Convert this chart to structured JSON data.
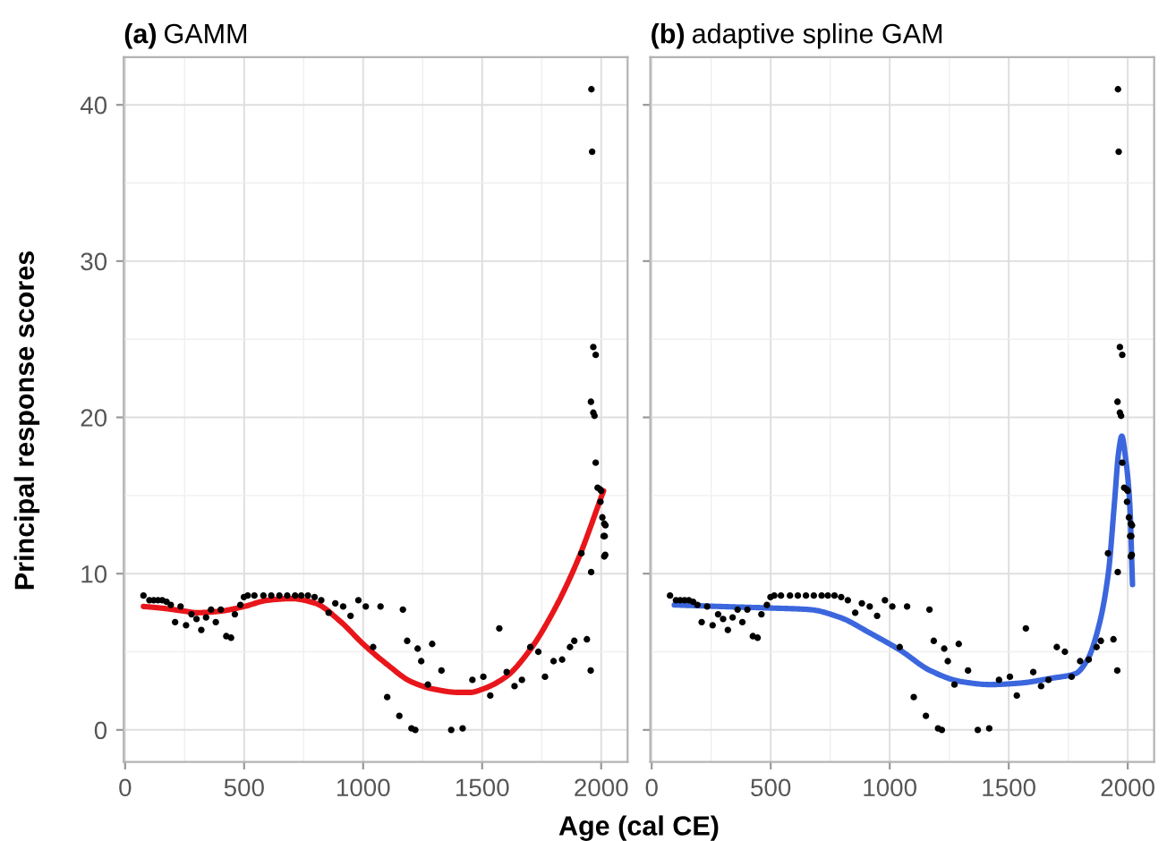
{
  "chart_data": [
    {
      "type": "scatter",
      "title": "(a) GAMM",
      "xlabel": "Age (cal CE)",
      "ylabel": "Principal response scores",
      "xlim": [
        -6,
        2111
      ],
      "ylim": [
        -2.05,
        43.05
      ],
      "xticks": [
        0,
        500,
        1000,
        1500,
        2000
      ],
      "yticks": [
        0,
        10,
        20,
        30,
        40
      ],
      "grid": true,
      "tick_labels": true,
      "series": [
        {
          "color": "#000000",
          "x": [
            77,
            102,
            120,
            138,
            156,
            174,
            192,
            210,
            233,
            256,
            279,
            300,
            320,
            340,
            361,
            381,
            402,
            425,
            445,
            461,
            484,
            499,
            515,
            543,
            581,
            614,
            648,
            681,
            714,
            740,
            768,
            796,
            824,
            855,
            883,
            916,
            947,
            980,
            1011,
            1042,
            1073,
            1101,
            1152,
            1167,
            1185,
            1203,
            1219,
            1229,
            1244,
            1272,
            1290,
            1329,
            1370,
            1418,
            1459,
            1505,
            1534,
            1572,
            1603,
            1636,
            1667,
            1702,
            1736,
            1764,
            1800,
            1836,
            1869,
            1887,
            1917,
            1940,
            1956,
            1958,
            1959,
            1962,
            1967,
            1977,
            1957,
            1967,
            1972,
            1977,
            1985,
            1995,
            2000,
            1997,
            2005,
            2013,
            2018,
            2010,
            2013,
            2015,
            2017
          ],
          "values": [
            8.6,
            8.3,
            8.3,
            8.3,
            8.3,
            8.2,
            8.0,
            6.9,
            7.9,
            6.7,
            7.4,
            7.1,
            6.4,
            7.2,
            7.7,
            6.9,
            7.7,
            6.0,
            5.9,
            7.4,
            8.0,
            8.5,
            8.6,
            8.6,
            8.6,
            8.6,
            8.6,
            8.6,
            8.6,
            8.6,
            8.6,
            8.5,
            8.3,
            7.5,
            8.1,
            7.9,
            7.3,
            8.3,
            7.9,
            5.3,
            7.9,
            2.1,
            0.9,
            7.7,
            5.7,
            0.1,
            0.0,
            5.2,
            4.4,
            2.9,
            5.5,
            3.8,
            0.0,
            0.1,
            3.2,
            3.4,
            2.2,
            6.5,
            3.7,
            2.8,
            3.2,
            5.3,
            5.0,
            3.4,
            4.4,
            4.5,
            5.3,
            5.7,
            11.3,
            5.8,
            3.8,
            10.1,
            41,
            37,
            24.5,
            24.0,
            21.0,
            20.3,
            20.1,
            17.1,
            15.5,
            15.4,
            15.3,
            14.6,
            13.6,
            13.2,
            13.1,
            12.4,
            11.1,
            12.4,
            11.2
          ]
        },
        {
          "type": "line",
          "color": "#e8161b",
          "x": [
            77,
            150,
            250,
            300,
            400,
            500,
            600,
            700,
            800,
            900,
            1000,
            1100,
            1200,
            1300,
            1400,
            1450,
            1500,
            1600,
            1700,
            1800,
            1900,
            2010
          ],
          "values": [
            7.9,
            7.8,
            7.6,
            7.5,
            7.6,
            7.9,
            8.3,
            8.4,
            8.1,
            7.0,
            5.5,
            4.2,
            3.1,
            2.6,
            2.4,
            2.4,
            2.6,
            3.4,
            5.1,
            7.6,
            10.8,
            15.3
          ]
        }
      ]
    },
    {
      "type": "scatter",
      "title": "(b) adaptive spline GAM",
      "xlim": [
        -6,
        2111
      ],
      "ylim": [
        -2.05,
        43.05
      ],
      "xticks": [
        0,
        500,
        1000,
        1500,
        2000
      ],
      "yticks": [
        0,
        10,
        20,
        30,
        40
      ],
      "grid": true,
      "tick_labels": "x",
      "series": [
        {
          "color": "#000000",
          "x": [
            77,
            102,
            120,
            138,
            156,
            174,
            192,
            210,
            233,
            256,
            279,
            300,
            320,
            340,
            361,
            381,
            402,
            425,
            445,
            461,
            484,
            499,
            515,
            543,
            581,
            614,
            648,
            681,
            714,
            740,
            768,
            796,
            824,
            855,
            883,
            916,
            947,
            980,
            1011,
            1042,
            1073,
            1101,
            1152,
            1167,
            1185,
            1203,
            1219,
            1229,
            1244,
            1272,
            1290,
            1329,
            1370,
            1418,
            1459,
            1505,
            1534,
            1572,
            1603,
            1636,
            1667,
            1702,
            1736,
            1764,
            1800,
            1836,
            1869,
            1887,
            1917,
            1940,
            1956,
            1958,
            1959,
            1962,
            1967,
            1977,
            1957,
            1967,
            1972,
            1977,
            1985,
            1995,
            2000,
            1997,
            2005,
            2013,
            2018,
            2010,
            2013,
            2015,
            2017
          ],
          "values": [
            8.6,
            8.3,
            8.3,
            8.3,
            8.3,
            8.2,
            8.0,
            6.9,
            7.9,
            6.7,
            7.4,
            7.1,
            6.4,
            7.2,
            7.7,
            6.9,
            7.7,
            6.0,
            5.9,
            7.4,
            8.0,
            8.5,
            8.6,
            8.6,
            8.6,
            8.6,
            8.6,
            8.6,
            8.6,
            8.6,
            8.6,
            8.5,
            8.3,
            7.5,
            8.1,
            7.9,
            7.3,
            8.3,
            7.9,
            5.3,
            7.9,
            2.1,
            0.9,
            7.7,
            5.7,
            0.1,
            0.0,
            5.2,
            4.4,
            2.9,
            5.5,
            3.8,
            0.0,
            0.1,
            3.2,
            3.4,
            2.2,
            6.5,
            3.7,
            2.8,
            3.2,
            5.3,
            5.0,
            3.4,
            4.4,
            4.5,
            5.3,
            5.7,
            11.3,
            5.8,
            3.8,
            10.1,
            41,
            37,
            24.5,
            24.0,
            21.0,
            20.3,
            20.1,
            17.1,
            15.5,
            15.4,
            15.3,
            14.6,
            13.6,
            13.2,
            13.1,
            12.4,
            11.1,
            12.4,
            11.2
          ]
        },
        {
          "type": "line",
          "color": "#3b66dd",
          "x": [
            95,
            285,
            500,
            664,
            791,
            917,
            1044,
            1170,
            1297,
            1423,
            1550,
            1676,
            1780,
            1831,
            1881,
            1919,
            1944,
            1962,
            1975,
            1990,
            2008,
            2020
          ],
          "values": [
            8.0,
            7.9,
            7.8,
            7.7,
            7.2,
            6.2,
            5.1,
            3.8,
            3.1,
            2.9,
            3.0,
            3.3,
            3.6,
            4.5,
            6.8,
            10.1,
            14.5,
            17.8,
            18.8,
            17.5,
            14.6,
            9.3
          ]
        }
      ]
    }
  ]
}
